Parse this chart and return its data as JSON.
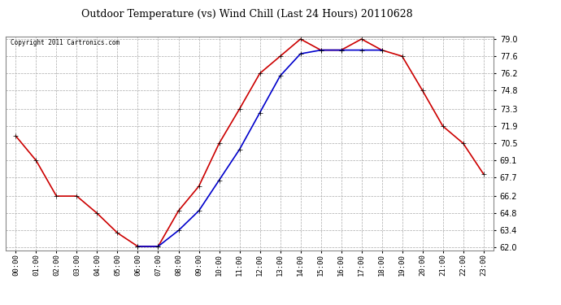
{
  "title": "Outdoor Temperature (vs) Wind Chill (Last 24 Hours) 20110628",
  "copyright_text": "Copyright 2011 Cartronics.com",
  "background_color": "#ffffff",
  "plot_bg_color": "#ffffff",
  "grid_color": "#aaaaaa",
  "x_labels": [
    "00:00",
    "01:00",
    "02:00",
    "03:00",
    "04:00",
    "05:00",
    "06:00",
    "07:00",
    "08:00",
    "09:00",
    "10:00",
    "11:00",
    "12:00",
    "13:00",
    "14:00",
    "15:00",
    "16:00",
    "17:00",
    "18:00",
    "19:00",
    "20:00",
    "21:00",
    "22:00",
    "23:00"
  ],
  "y_ticks": [
    62.0,
    63.4,
    64.8,
    66.2,
    67.7,
    69.1,
    70.5,
    71.9,
    73.3,
    74.8,
    76.2,
    77.6,
    79.0
  ],
  "temp_color": "#cc0000",
  "windchill_color": "#0000cc",
  "marker": "+",
  "marker_size": 5,
  "line_width": 1.2,
  "temp_data": [
    71.1,
    69.1,
    66.2,
    66.2,
    64.8,
    63.2,
    62.1,
    62.1,
    65.0,
    67.0,
    70.5,
    73.3,
    76.2,
    77.6,
    79.0,
    78.1,
    78.1,
    79.0,
    78.1,
    77.6,
    74.8,
    71.9,
    70.5,
    68.0
  ],
  "windchill_data": [
    null,
    null,
    null,
    null,
    null,
    null,
    62.1,
    62.1,
    63.4,
    65.0,
    67.5,
    70.0,
    73.0,
    76.0,
    77.8,
    78.1,
    78.1,
    78.1,
    78.1,
    null,
    null,
    null,
    null,
    null
  ],
  "figwidth": 6.9,
  "figheight": 3.75,
  "dpi": 100
}
